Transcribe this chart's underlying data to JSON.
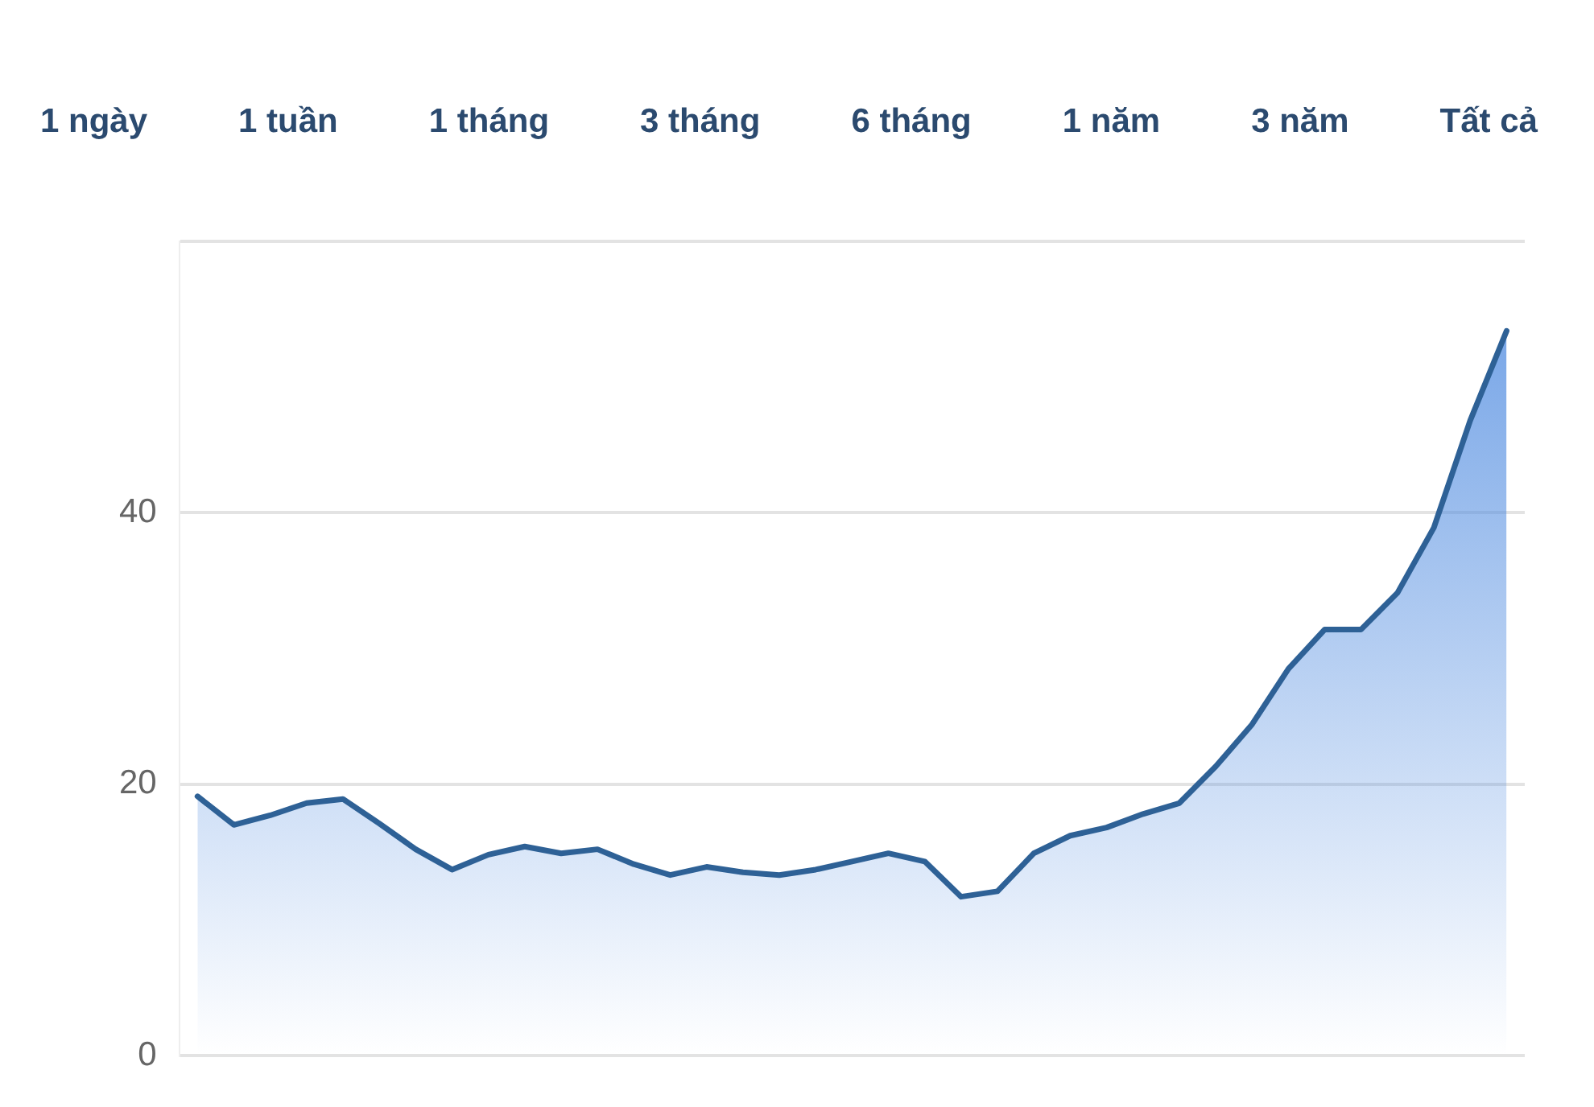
{
  "chart_data": {
    "type": "area",
    "annotations": [
      "1 ngày",
      "1 tuần",
      "1 tháng",
      "3 tháng",
      "6 tháng",
      "1 năm",
      "3 năm",
      "Tất cả"
    ],
    "categories": [
      null,
      null,
      null,
      null,
      null,
      null,
      null,
      null,
      null,
      null,
      null,
      null,
      null,
      null,
      null,
      null,
      null,
      null,
      null,
      null,
      null,
      null,
      null,
      null,
      null,
      null,
      null,
      null,
      null,
      null,
      null,
      null,
      null,
      null,
      null,
      null,
      null
    ],
    "series": [
      {
        "color": "#2e6196",
        "values": [
          19.1,
          17.0,
          17.7,
          18.6,
          18.9,
          17.1,
          15.2,
          13.7,
          14.8,
          15.4,
          14.9,
          15.2,
          14.1,
          13.3,
          13.9,
          13.5,
          13.3,
          13.7,
          14.3,
          14.9,
          14.3,
          11.7,
          12.1,
          14.9,
          16.2,
          16.8,
          17.8,
          18.6,
          21.3,
          24.4,
          28.5,
          31.4,
          31.4,
          34.1,
          38.9,
          46.8,
          53.4
        ]
      }
    ],
    "ylim": [
      0,
      60
    ],
    "yticks": [
      0,
      20,
      40,
      {
        "value": 60,
        "label": null
      }
    ],
    "grid": "y",
    "legend": false,
    "tick_labels": "y",
    "marker": "none",
    "line_style": "solid"
  }
}
